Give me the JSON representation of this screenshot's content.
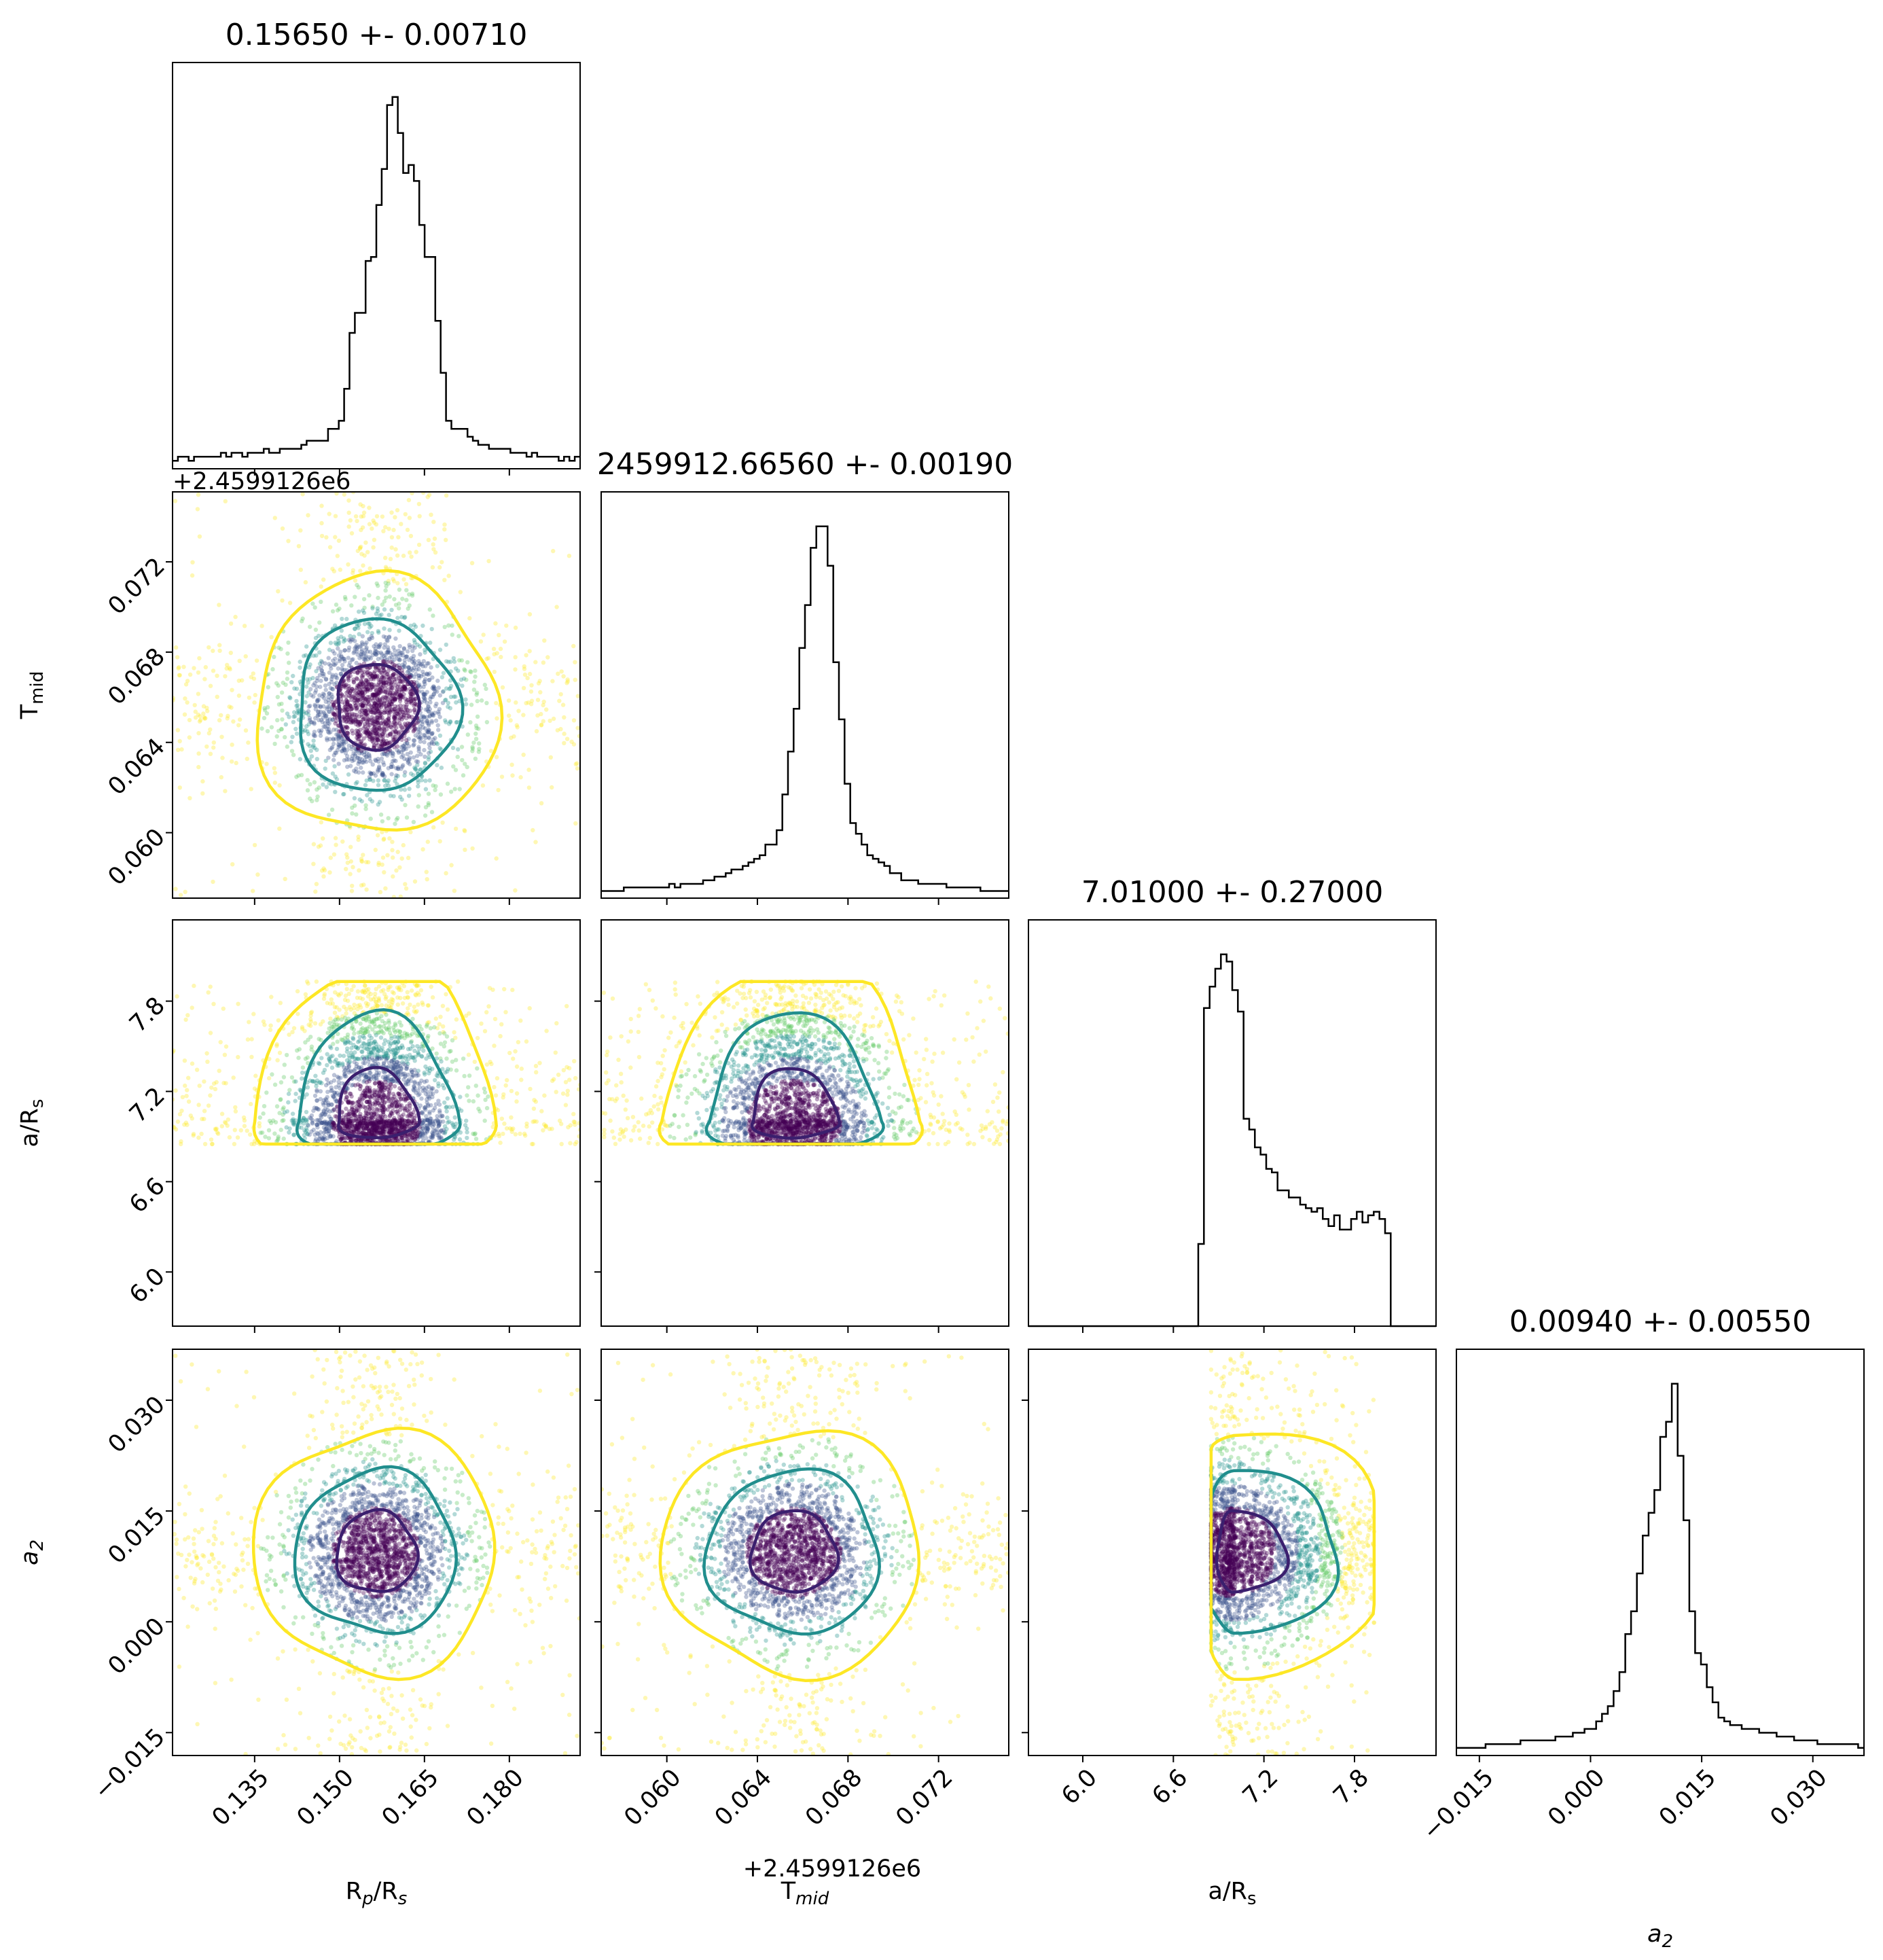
{
  "chart_data": {
    "type": "corner",
    "parameters": [
      {
        "key": "rp",
        "label_main": "R",
        "label_sub": "p",
        "label_tail": "/R",
        "label_tail_sub": "s",
        "title": "0.15650 +- 0.00710",
        "range": [
          0.1205,
          0.1925
        ],
        "mean": 0.1565,
        "std": 0.0071,
        "ticks": [
          0.135,
          0.15,
          0.165,
          0.18
        ],
        "tick_labels": [
          "0.135",
          "0.150",
          "0.165",
          "0.180"
        ],
        "offset": ""
      },
      {
        "key": "tmid",
        "label_main": "T",
        "label_sub": "mid",
        "label_tail": "",
        "label_tail_sub": "",
        "title": "2459912.66560 +- 0.00190",
        "range": [
          0.0571,
          0.0751
        ],
        "mean": 0.0656,
        "std": 0.0019,
        "ticks": [
          0.06,
          0.064,
          0.068,
          0.072
        ],
        "tick_labels": [
          "0.060",
          "0.064",
          "0.068",
          "0.072"
        ],
        "offset": "+2.4599126e6"
      },
      {
        "key": "ars",
        "label_main": "a/R",
        "label_sub": "s",
        "label_tail": "",
        "label_tail_sub": "",
        "title": "7.01000 +- 0.27000",
        "range": [
          5.64,
          8.34
        ],
        "mean": 7.01,
        "std": 0.27,
        "ticks": [
          6.0,
          6.6,
          7.2,
          7.8
        ],
        "tick_labels": [
          "6.0",
          "6.6",
          "7.2",
          "7.8"
        ],
        "offset": ""
      },
      {
        "key": "a2",
        "label_main": "a",
        "label_sub": "2",
        "label_tail": "",
        "label_tail_sub": "",
        "italic": true,
        "title": "0.00940 +- 0.00550",
        "range": [
          -0.0181,
          0.0369
        ],
        "mean": 0.0094,
        "std": 0.0055,
        "ticks": [
          -0.015,
          0.0,
          0.015,
          0.03
        ],
        "tick_labels": [
          "−0.015",
          "0.000",
          "0.015",
          "0.030"
        ],
        "offset": ""
      }
    ],
    "histograms": {
      "rp": [
        2,
        3,
        3,
        2,
        3,
        3,
        3,
        3,
        3,
        4,
        3,
        4,
        4,
        3,
        4,
        4,
        4,
        5,
        4,
        4,
        5,
        5,
        5,
        5,
        6,
        7,
        7,
        7,
        7,
        10,
        10,
        12,
        20,
        34,
        39,
        39,
        52,
        53,
        66,
        75,
        91,
        93,
        84,
        74,
        76,
        72,
        61,
        53,
        53,
        37,
        24,
        12,
        10,
        10,
        10,
        8,
        7,
        6,
        6,
        5,
        5,
        5,
        5,
        4,
        4,
        4,
        3,
        4,
        3,
        3,
        3,
        3,
        2,
        3,
        2,
        3
      ],
      "tmid": [
        2,
        2,
        2,
        2,
        3,
        3,
        3,
        3,
        3,
        3,
        3,
        3,
        4,
        3,
        4,
        4,
        4,
        4,
        5,
        5,
        6,
        6,
        7,
        8,
        8,
        9,
        10,
        11,
        12,
        15,
        15,
        19,
        29,
        41,
        53,
        70,
        82,
        98,
        104,
        104,
        93,
        66,
        50,
        32,
        21,
        18,
        15,
        12,
        11,
        10,
        9,
        7,
        7,
        5,
        5,
        5,
        4,
        4,
        4,
        4,
        4,
        3,
        3,
        3,
        3,
        3,
        3,
        2,
        2,
        2,
        2,
        2
      ],
      "ars": [
        0,
        0,
        0,
        0,
        0,
        0,
        0,
        0,
        0,
        0,
        0,
        0,
        0,
        0,
        0,
        0,
        0,
        0,
        0,
        0,
        0,
        0,
        0,
        0,
        0,
        0,
        0,
        0,
        0,
        0,
        23,
        89,
        95,
        100,
        104,
        102,
        94,
        88,
        58,
        55,
        50,
        48,
        44,
        43,
        38,
        38,
        36,
        36,
        34,
        33,
        32,
        33,
        30,
        28,
        31,
        27,
        27,
        30,
        32,
        29,
        31,
        32,
        30,
        26,
        0,
        0,
        0,
        0,
        0,
        0,
        0,
        0
      ],
      "a2": [
        2,
        2,
        2,
        2,
        2,
        3,
        3,
        3,
        3,
        3,
        3,
        4,
        4,
        4,
        4,
        4,
        4,
        5,
        5,
        5,
        6,
        6,
        7,
        7,
        9,
        11,
        13,
        17,
        22,
        32,
        38,
        48,
        58,
        64,
        70,
        84,
        88,
        98,
        79,
        62,
        38,
        27,
        24,
        18,
        14,
        10,
        9,
        8,
        8,
        7,
        7,
        7,
        6,
        6,
        6,
        5,
        5,
        5,
        4,
        4,
        4,
        4,
        3,
        3,
        3,
        3,
        3,
        3,
        3,
        2
      ]
    },
    "contour_colors": [
      "#3b1f6e",
      "#218e8d",
      "#fde725"
    ],
    "point_colors": [
      "#440154",
      "#3b528b",
      "#21918c",
      "#5ec962",
      "#fde725"
    ],
    "histogram_color": "#000000",
    "grid": false,
    "legend": "none"
  }
}
